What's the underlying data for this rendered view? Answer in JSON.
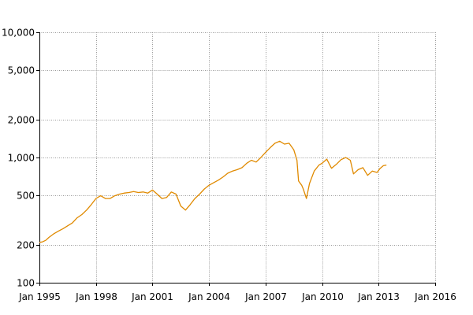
{
  "chart_data": {
    "type": "line",
    "title": "",
    "xlabel": "",
    "ylabel": "",
    "y_scale": "log",
    "ylim": [
      100,
      10000
    ],
    "xlim": [
      "1995-01",
      "2016-01"
    ],
    "grid": true,
    "legend": "none",
    "y_ticks": [
      {
        "value": 100,
        "label": "100"
      },
      {
        "value": 200,
        "label": "200"
      },
      {
        "value": 500,
        "label": "500"
      },
      {
        "value": 1000,
        "label": "1,000"
      },
      {
        "value": 2000,
        "label": "2,000"
      },
      {
        "value": 5000,
        "label": "5,000"
      },
      {
        "value": 10000,
        "label": "10,000"
      }
    ],
    "x_ticks": [
      {
        "value": "1995-01",
        "label": "Jan 1995"
      },
      {
        "value": "1998-01",
        "label": "Jan 1998"
      },
      {
        "value": "2001-01",
        "label": "Jan 2001"
      },
      {
        "value": "2004-01",
        "label": "Jan 2004"
      },
      {
        "value": "2007-01",
        "label": "Jan 2007"
      },
      {
        "value": "2010-01",
        "label": "Jan 2010"
      },
      {
        "value": "2013-01",
        "label": "Jan 2013"
      },
      {
        "value": "2016-01",
        "label": "Jan 2016"
      }
    ],
    "series": [
      {
        "color": "#e08a00",
        "points": [
          [
            "1995-01",
            210
          ],
          [
            "1995-03",
            212
          ],
          [
            "1995-05",
            218
          ],
          [
            "1995-07",
            230
          ],
          [
            "1995-10",
            245
          ],
          [
            "1996-01",
            258
          ],
          [
            "1996-04",
            270
          ],
          [
            "1996-07",
            285
          ],
          [
            "1996-10",
            300
          ],
          [
            "1997-01",
            330
          ],
          [
            "1997-04",
            350
          ],
          [
            "1997-07",
            380
          ],
          [
            "1997-10",
            420
          ],
          [
            "1998-01",
            470
          ],
          [
            "1998-04",
            495
          ],
          [
            "1998-07",
            470
          ],
          [
            "1998-10",
            470
          ],
          [
            "1999-01",
            495
          ],
          [
            "1999-04",
            510
          ],
          [
            "1999-07",
            520
          ],
          [
            "1999-10",
            525
          ],
          [
            "2000-01",
            535
          ],
          [
            "2000-04",
            525
          ],
          [
            "2000-07",
            530
          ],
          [
            "2000-10",
            520
          ],
          [
            "2001-01",
            550
          ],
          [
            "2001-04",
            510
          ],
          [
            "2001-07",
            470
          ],
          [
            "2001-10",
            480
          ],
          [
            "2002-01",
            530
          ],
          [
            "2002-04",
            510
          ],
          [
            "2002-07",
            410
          ],
          [
            "2002-10",
            380
          ],
          [
            "2003-01",
            420
          ],
          [
            "2003-04",
            470
          ],
          [
            "2003-07",
            510
          ],
          [
            "2003-10",
            560
          ],
          [
            "2004-01",
            600
          ],
          [
            "2004-04",
            630
          ],
          [
            "2004-07",
            660
          ],
          [
            "2004-10",
            700
          ],
          [
            "2005-01",
            750
          ],
          [
            "2005-04",
            780
          ],
          [
            "2005-07",
            800
          ],
          [
            "2005-10",
            830
          ],
          [
            "2006-01",
            900
          ],
          [
            "2006-04",
            950
          ],
          [
            "2006-07",
            920
          ],
          [
            "2006-10",
            1000
          ],
          [
            "2007-01",
            1100
          ],
          [
            "2007-04",
            1200
          ],
          [
            "2007-07",
            1300
          ],
          [
            "2007-10",
            1350
          ],
          [
            "2008-01",
            1280
          ],
          [
            "2008-04",
            1300
          ],
          [
            "2008-07",
            1150
          ],
          [
            "2008-09",
            950
          ],
          [
            "2008-10",
            650
          ],
          [
            "2008-12",
            600
          ],
          [
            "2009-01",
            560
          ],
          [
            "2009-03",
            470
          ],
          [
            "2009-05",
            620
          ],
          [
            "2009-08",
            780
          ],
          [
            "2009-11",
            870
          ],
          [
            "2010-01",
            900
          ],
          [
            "2010-04",
            970
          ],
          [
            "2010-07",
            820
          ],
          [
            "2010-10",
            880
          ],
          [
            "2011-01",
            960
          ],
          [
            "2011-04",
            1000
          ],
          [
            "2011-07",
            950
          ],
          [
            "2011-09",
            740
          ],
          [
            "2011-12",
            800
          ],
          [
            "2012-03",
            830
          ],
          [
            "2012-06",
            720
          ],
          [
            "2012-09",
            780
          ],
          [
            "2012-12",
            760
          ],
          [
            "2013-02",
            820
          ],
          [
            "2013-04",
            860
          ],
          [
            "2013-06",
            870
          ]
        ]
      }
    ]
  }
}
